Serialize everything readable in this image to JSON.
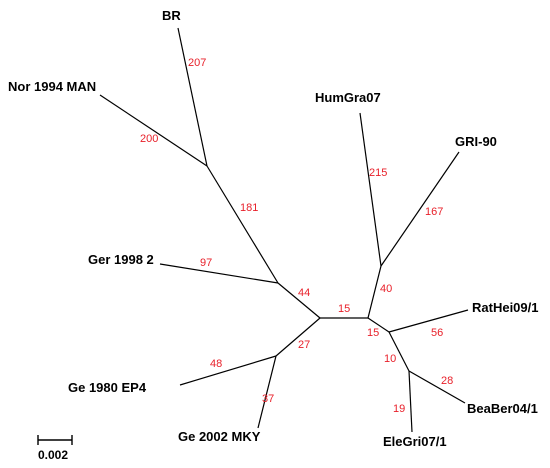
{
  "colors": {
    "branch": "#000000",
    "branch_label": "#e8202a",
    "taxon": "#000000"
  },
  "taxa": {
    "br": "BR",
    "nor1994man": "Nor 1994 MAN",
    "ger19982": "Ger 1998 2",
    "ge1980ep4": "Ge 1980 EP4",
    "ge2002mky": "Ge 2002 MKY",
    "humgra07": "HumGra07",
    "gri90": "GRI-90",
    "rathei091": "RatHei09/1",
    "beaber041": "BeaBer04/1",
    "elegri071": "EleGri07/1"
  },
  "branch_labels": {
    "br": "207",
    "nor": "200",
    "upper_internal": "181",
    "ger": "97",
    "left_internal": "44",
    "root": "15",
    "ge1980": "48",
    "ge_internal": "27",
    "ge2002": "37",
    "humgra": "215",
    "gri": "167",
    "right_upper_internal": "40",
    "right_lower_internal": "15",
    "rathei": "56",
    "ele_bea_internal": "10",
    "beaber": "28",
    "elegri": "19"
  },
  "scale_bar": {
    "label": "0.002"
  }
}
